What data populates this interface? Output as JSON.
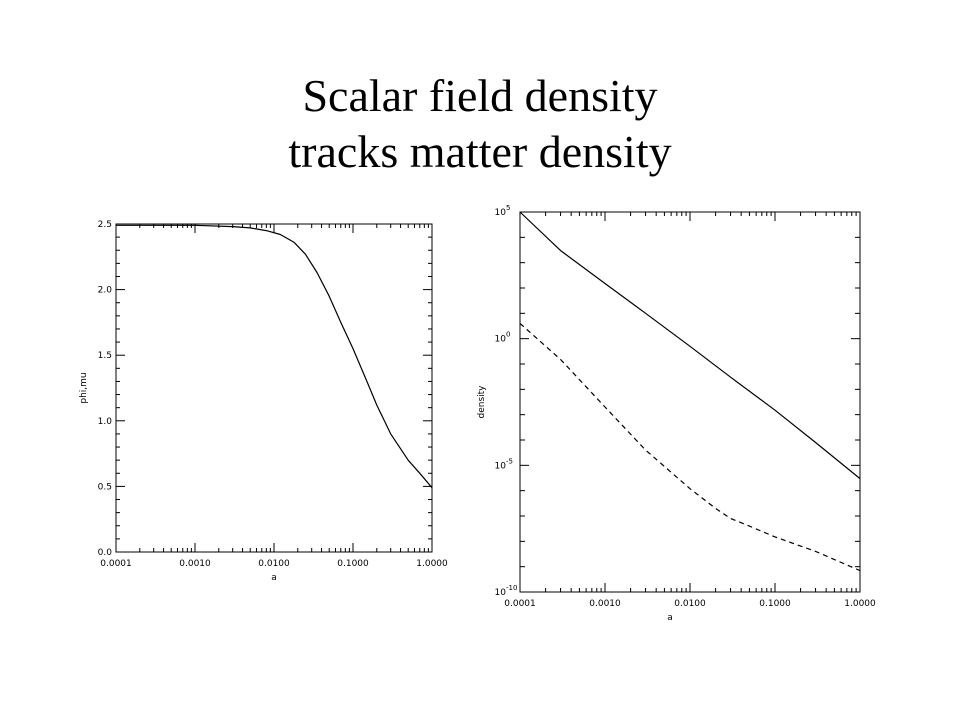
{
  "slide": {
    "title_line1": "Scalar field density",
    "title_line2": "tracks matter density"
  },
  "chart_data": [
    {
      "type": "line",
      "title": "",
      "xlabel": "a",
      "ylabel": "phi,mu",
      "xscale": "log",
      "yscale": "linear",
      "xlim": [
        0.0001,
        1.0
      ],
      "ylim": [
        0.0,
        2.5
      ],
      "x_tick_labels": [
        "0.0001",
        "0.0010",
        "0.0100",
        "0.1000",
        "1.0000"
      ],
      "y_tick_labels": [
        "0.0",
        "0.5",
        "1.0",
        "1.5",
        "2.0",
        "2.5"
      ],
      "grid": false,
      "series": [
        {
          "style": "solid",
          "x": [
            0.0001,
            0.001,
            0.003,
            0.005,
            0.008,
            0.012,
            0.018,
            0.025,
            0.035,
            0.05,
            0.07,
            0.1,
            0.15,
            0.2,
            0.3,
            0.5,
            0.7,
            1.0
          ],
          "y": [
            2.49,
            2.49,
            2.48,
            2.47,
            2.45,
            2.42,
            2.36,
            2.27,
            2.13,
            1.95,
            1.75,
            1.55,
            1.3,
            1.12,
            0.9,
            0.7,
            0.6,
            0.49
          ]
        }
      ]
    },
    {
      "type": "line",
      "title": "",
      "xlabel": "a",
      "ylabel": "density",
      "xscale": "log",
      "yscale": "log",
      "xlim": [
        0.0001,
        1.0
      ],
      "ylim": [
        1e-10,
        100000
      ],
      "x_tick_labels": [
        "0.0001",
        "0.0010",
        "0.0100",
        "0.1000",
        "1.0000"
      ],
      "y_tick_labels": [
        {
          "base": "10",
          "exp": "5",
          "value": 100000
        },
        {
          "base": "10",
          "exp": "0",
          "value": 1
        },
        {
          "base": "10",
          "exp": "-5",
          "value": 1e-05
        },
        {
          "base": "10",
          "exp": "-10",
          "value": 1e-10
        }
      ],
      "grid": false,
      "series": [
        {
          "style": "solid",
          "x": [
            0.0001,
            0.0003,
            0.001,
            0.003,
            0.01,
            0.03,
            0.1,
            0.3,
            1.0
          ],
          "y": [
            100000,
            3000,
            150,
            10,
            0.5,
            0.03,
            0.0015,
            8e-05,
            3e-06
          ]
        },
        {
          "style": "dashed",
          "x": [
            0.0001,
            0.0003,
            0.001,
            0.003,
            0.01,
            0.02,
            0.03,
            0.05,
            0.1,
            0.3,
            1.0
          ],
          "y": [
            4,
            0.15,
            0.002,
            4e-05,
            1.2e-06,
            2e-07,
            8e-08,
            4e-08,
            1.5e-08,
            4e-09,
            7e-10
          ]
        }
      ]
    }
  ]
}
